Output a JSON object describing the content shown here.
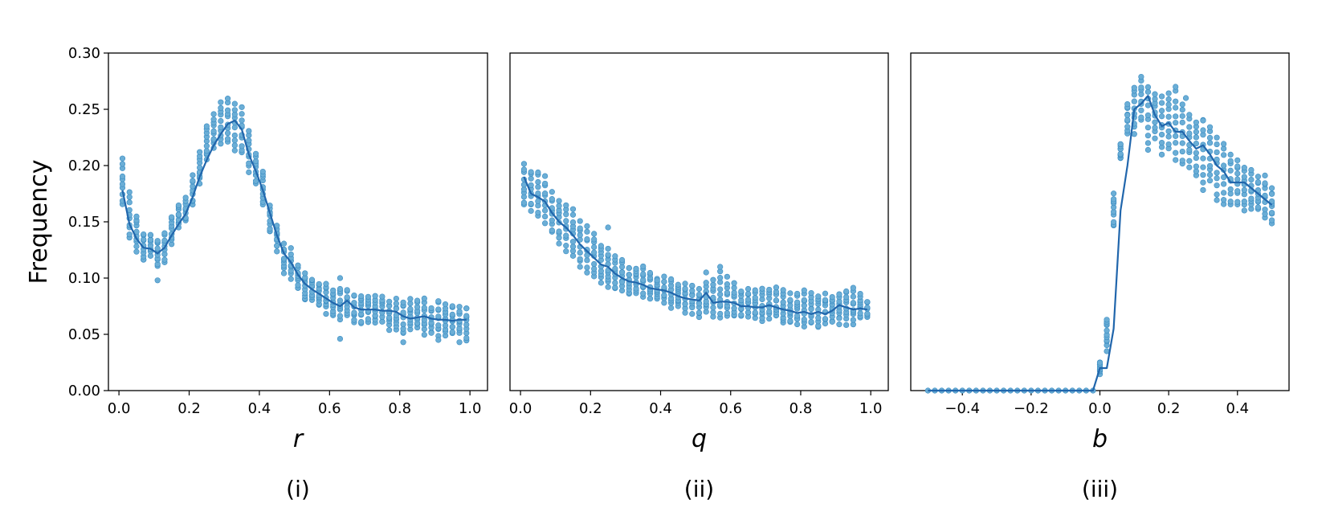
{
  "colors": {
    "points": "#6baed6",
    "points_edge": "#3a8cc2",
    "line": "#2166ac",
    "axis": "#000000"
  },
  "chart_data": [
    {
      "type": "scatter",
      "xlabel": "r",
      "ylabel": "Frequency",
      "caption": "(i)",
      "xlim": [
        -0.03,
        1.05
      ],
      "ylim": [
        0.0,
        0.3
      ],
      "xticks": [
        "0.0",
        "0.2",
        "0.4",
        "0.6",
        "0.8",
        "1.0"
      ],
      "xtick_values": [
        0.0,
        0.2,
        0.4,
        0.6,
        0.8,
        1.0
      ],
      "yticks": [
        "0.00",
        "0.05",
        "0.10",
        "0.15",
        "0.20",
        "0.25",
        "0.30"
      ],
      "ytick_values": [
        0.0,
        0.05,
        0.1,
        0.15,
        0.2,
        0.25,
        0.3
      ],
      "show_yticks": true,
      "series": [
        {
          "type": "scatter_band",
          "x": [
            0.01,
            0.03,
            0.05,
            0.07,
            0.09,
            0.11,
            0.13,
            0.15,
            0.17,
            0.19,
            0.21,
            0.23,
            0.25,
            0.27,
            0.29,
            0.31,
            0.33,
            0.35,
            0.37,
            0.39,
            0.41,
            0.43,
            0.45,
            0.47,
            0.49,
            0.51,
            0.53,
            0.55,
            0.57,
            0.59,
            0.61,
            0.63,
            0.65,
            0.67,
            0.69,
            0.71,
            0.73,
            0.75,
            0.77,
            0.79,
            0.81,
            0.83,
            0.85,
            0.87,
            0.89,
            0.91,
            0.93,
            0.95,
            0.97,
            0.99
          ],
          "low": [
            0.165,
            0.135,
            0.125,
            0.115,
            0.12,
            0.11,
            0.115,
            0.13,
            0.145,
            0.15,
            0.165,
            0.185,
            0.205,
            0.215,
            0.22,
            0.22,
            0.215,
            0.21,
            0.195,
            0.185,
            0.165,
            0.14,
            0.125,
            0.105,
            0.1,
            0.09,
            0.08,
            0.08,
            0.075,
            0.07,
            0.065,
            0.065,
            0.065,
            0.06,
            0.06,
            0.06,
            0.06,
            0.06,
            0.055,
            0.055,
            0.05,
            0.055,
            0.055,
            0.05,
            0.05,
            0.05,
            0.05,
            0.05,
            0.05,
            0.045
          ],
          "high": [
            0.205,
            0.175,
            0.155,
            0.14,
            0.14,
            0.135,
            0.14,
            0.155,
            0.165,
            0.17,
            0.19,
            0.21,
            0.235,
            0.245,
            0.255,
            0.26,
            0.255,
            0.25,
            0.23,
            0.21,
            0.195,
            0.165,
            0.145,
            0.13,
            0.125,
            0.11,
            0.105,
            0.1,
            0.095,
            0.095,
            0.09,
            0.09,
            0.09,
            0.085,
            0.085,
            0.085,
            0.085,
            0.085,
            0.08,
            0.08,
            0.08,
            0.08,
            0.08,
            0.08,
            0.075,
            0.08,
            0.075,
            0.075,
            0.075,
            0.075
          ],
          "outliers": [
            [
              0.11,
              0.098
            ],
            [
              0.63,
              0.046
            ],
            [
              0.63,
              0.1
            ],
            [
              0.81,
              0.043
            ],
            [
              0.97,
              0.043
            ],
            [
              0.91,
              0.045
            ]
          ]
        },
        {
          "type": "line",
          "x": [
            0.01,
            0.03,
            0.05,
            0.07,
            0.09,
            0.11,
            0.13,
            0.15,
            0.17,
            0.19,
            0.21,
            0.23,
            0.25,
            0.27,
            0.29,
            0.31,
            0.33,
            0.35,
            0.37,
            0.39,
            0.41,
            0.43,
            0.45,
            0.47,
            0.49,
            0.51,
            0.53,
            0.55,
            0.57,
            0.59,
            0.61,
            0.63,
            0.65,
            0.67,
            0.69,
            0.71,
            0.73,
            0.75,
            0.77,
            0.79,
            0.81,
            0.83,
            0.85,
            0.87,
            0.89,
            0.91,
            0.93,
            0.95,
            0.97,
            0.99
          ],
          "y": [
            0.178,
            0.148,
            0.135,
            0.127,
            0.126,
            0.122,
            0.127,
            0.138,
            0.148,
            0.157,
            0.172,
            0.19,
            0.205,
            0.218,
            0.228,
            0.237,
            0.24,
            0.232,
            0.21,
            0.195,
            0.178,
            0.158,
            0.138,
            0.122,
            0.114,
            0.103,
            0.095,
            0.09,
            0.086,
            0.082,
            0.078,
            0.075,
            0.08,
            0.074,
            0.072,
            0.072,
            0.072,
            0.071,
            0.071,
            0.07,
            0.066,
            0.064,
            0.065,
            0.066,
            0.064,
            0.063,
            0.063,
            0.062,
            0.063,
            0.063
          ]
        }
      ]
    },
    {
      "type": "scatter",
      "xlabel": "q",
      "ylabel": "",
      "caption": "(ii)",
      "xlim": [
        -0.03,
        1.05
      ],
      "ylim": [
        0.0,
        0.3
      ],
      "xticks": [
        "0.0",
        "0.2",
        "0.4",
        "0.6",
        "0.8",
        "1.0"
      ],
      "xtick_values": [
        0.0,
        0.2,
        0.4,
        0.6,
        0.8,
        1.0
      ],
      "yticks": [],
      "ytick_values": [],
      "show_yticks": false,
      "series": [
        {
          "type": "scatter_band",
          "x": [
            0.01,
            0.03,
            0.05,
            0.07,
            0.09,
            0.11,
            0.13,
            0.15,
            0.17,
            0.19,
            0.21,
            0.23,
            0.25,
            0.27,
            0.29,
            0.31,
            0.33,
            0.35,
            0.37,
            0.39,
            0.41,
            0.43,
            0.45,
            0.47,
            0.49,
            0.51,
            0.53,
            0.55,
            0.57,
            0.59,
            0.61,
            0.63,
            0.65,
            0.67,
            0.69,
            0.71,
            0.73,
            0.75,
            0.77,
            0.79,
            0.81,
            0.83,
            0.85,
            0.87,
            0.89,
            0.91,
            0.93,
            0.95,
            0.97,
            0.99
          ],
          "low": [
            0.165,
            0.16,
            0.155,
            0.15,
            0.14,
            0.13,
            0.125,
            0.12,
            0.11,
            0.105,
            0.1,
            0.095,
            0.095,
            0.09,
            0.09,
            0.085,
            0.085,
            0.085,
            0.08,
            0.08,
            0.08,
            0.075,
            0.075,
            0.07,
            0.07,
            0.065,
            0.07,
            0.065,
            0.065,
            0.065,
            0.065,
            0.065,
            0.065,
            0.065,
            0.06,
            0.065,
            0.065,
            0.06,
            0.06,
            0.06,
            0.055,
            0.06,
            0.055,
            0.06,
            0.06,
            0.06,
            0.06,
            0.06,
            0.065,
            0.065
          ],
          "high": [
            0.2,
            0.195,
            0.195,
            0.19,
            0.175,
            0.17,
            0.165,
            0.16,
            0.15,
            0.145,
            0.14,
            0.13,
            0.125,
            0.12,
            0.115,
            0.11,
            0.11,
            0.11,
            0.105,
            0.1,
            0.1,
            0.1,
            0.095,
            0.095,
            0.095,
            0.09,
            0.095,
            0.1,
            0.105,
            0.1,
            0.095,
            0.09,
            0.09,
            0.09,
            0.09,
            0.09,
            0.09,
            0.09,
            0.085,
            0.085,
            0.09,
            0.085,
            0.085,
            0.085,
            0.085,
            0.085,
            0.09,
            0.09,
            0.085,
            0.08
          ],
          "outliers": [
            [
              0.53,
              0.105
            ],
            [
              0.57,
              0.11
            ],
            [
              0.25,
              0.145
            ],
            [
              0.25,
              0.092
            ]
          ]
        },
        {
          "type": "line",
          "x": [
            0.01,
            0.03,
            0.05,
            0.07,
            0.09,
            0.11,
            0.13,
            0.15,
            0.17,
            0.19,
            0.21,
            0.23,
            0.25,
            0.27,
            0.29,
            0.31,
            0.33,
            0.35,
            0.37,
            0.39,
            0.41,
            0.43,
            0.45,
            0.47,
            0.49,
            0.51,
            0.53,
            0.55,
            0.57,
            0.59,
            0.61,
            0.63,
            0.65,
            0.67,
            0.69,
            0.71,
            0.73,
            0.75,
            0.77,
            0.79,
            0.81,
            0.83,
            0.85,
            0.87,
            0.89,
            0.91,
            0.93,
            0.95,
            0.97,
            0.99
          ],
          "y": [
            0.19,
            0.175,
            0.172,
            0.168,
            0.158,
            0.15,
            0.145,
            0.138,
            0.13,
            0.124,
            0.118,
            0.112,
            0.11,
            0.104,
            0.1,
            0.097,
            0.096,
            0.094,
            0.091,
            0.09,
            0.089,
            0.087,
            0.084,
            0.082,
            0.081,
            0.08,
            0.087,
            0.078,
            0.079,
            0.079,
            0.078,
            0.075,
            0.075,
            0.074,
            0.074,
            0.076,
            0.074,
            0.072,
            0.071,
            0.069,
            0.07,
            0.068,
            0.07,
            0.068,
            0.071,
            0.076,
            0.074,
            0.072,
            0.073,
            0.072
          ]
        }
      ]
    },
    {
      "type": "scatter",
      "xlabel": "b",
      "ylabel": "",
      "caption": "(iii)",
      "xlim": [
        -0.55,
        0.55
      ],
      "ylim": [
        0.0,
        0.3
      ],
      "xticks": [
        "−0.4",
        "−0.2",
        "0.0",
        "0.2",
        "0.4"
      ],
      "xtick_values": [
        -0.4,
        -0.2,
        0.0,
        0.2,
        0.4
      ],
      "yticks": [],
      "ytick_values": [],
      "show_yticks": false,
      "series": [
        {
          "type": "scatter_band",
          "x": [
            -0.5,
            -0.48,
            -0.46,
            -0.44,
            -0.42,
            -0.4,
            -0.38,
            -0.36,
            -0.34,
            -0.32,
            -0.3,
            -0.28,
            -0.26,
            -0.24,
            -0.22,
            -0.2,
            -0.18,
            -0.16,
            -0.14,
            -0.12,
            -0.1,
            -0.08,
            -0.06,
            -0.04,
            -0.02,
            0.0,
            0.02,
            0.04,
            0.06,
            0.08,
            0.1,
            0.12,
            0.14,
            0.16,
            0.18,
            0.2,
            0.22,
            0.24,
            0.26,
            0.28,
            0.3,
            0.32,
            0.34,
            0.36,
            0.38,
            0.4,
            0.42,
            0.44,
            0.46,
            0.48,
            0.5
          ],
          "low": [
            0,
            0,
            0,
            0,
            0,
            0,
            0,
            0,
            0,
            0,
            0,
            0,
            0,
            0,
            0,
            0,
            0,
            0,
            0,
            0,
            0,
            0,
            0,
            0,
            0,
            0.015,
            0.04,
            0.145,
            0.205,
            0.23,
            0.23,
            0.24,
            0.215,
            0.225,
            0.21,
            0.215,
            0.205,
            0.2,
            0.2,
            0.19,
            0.18,
            0.185,
            0.17,
            0.165,
            0.165,
            0.165,
            0.16,
            0.16,
            0.16,
            0.155,
            0.15
          ],
          "high": [
            0,
            0,
            0,
            0,
            0,
            0,
            0,
            0,
            0,
            0,
            0,
            0,
            0,
            0,
            0,
            0,
            0,
            0,
            0,
            0,
            0,
            0,
            0,
            0,
            0,
            0.025,
            0.065,
            0.175,
            0.22,
            0.255,
            0.27,
            0.28,
            0.27,
            0.265,
            0.26,
            0.265,
            0.265,
            0.255,
            0.245,
            0.24,
            0.24,
            0.235,
            0.225,
            0.22,
            0.21,
            0.205,
            0.2,
            0.195,
            0.19,
            0.19,
            0.18
          ],
          "outliers": [
            [
              0.25,
              0.26
            ],
            [
              0.22,
              0.27
            ],
            [
              0.3,
              0.24
            ],
            [
              0.02,
              0.035
            ]
          ]
        },
        {
          "type": "line",
          "x": [
            -0.5,
            -0.48,
            -0.46,
            -0.44,
            -0.42,
            -0.4,
            -0.38,
            -0.36,
            -0.34,
            -0.32,
            -0.3,
            -0.28,
            -0.26,
            -0.24,
            -0.22,
            -0.2,
            -0.18,
            -0.16,
            -0.14,
            -0.12,
            -0.1,
            -0.08,
            -0.06,
            -0.04,
            -0.02,
            0.0,
            0.02,
            0.04,
            0.06,
            0.08,
            0.1,
            0.12,
            0.14,
            0.16,
            0.18,
            0.2,
            0.22,
            0.24,
            0.26,
            0.28,
            0.3,
            0.32,
            0.34,
            0.36,
            0.38,
            0.4,
            0.42,
            0.44,
            0.46,
            0.48,
            0.5
          ],
          "y": [
            0,
            0,
            0,
            0,
            0,
            0,
            0,
            0,
            0,
            0,
            0,
            0,
            0,
            0,
            0,
            0,
            0,
            0,
            0,
            0,
            0,
            0,
            0,
            0,
            0,
            0.02,
            0.02,
            0.055,
            0.16,
            0.2,
            0.25,
            0.255,
            0.262,
            0.245,
            0.235,
            0.238,
            0.23,
            0.23,
            0.222,
            0.215,
            0.218,
            0.21,
            0.2,
            0.195,
            0.185,
            0.185,
            0.185,
            0.18,
            0.175,
            0.17,
            0.165
          ]
        }
      ]
    }
  ]
}
